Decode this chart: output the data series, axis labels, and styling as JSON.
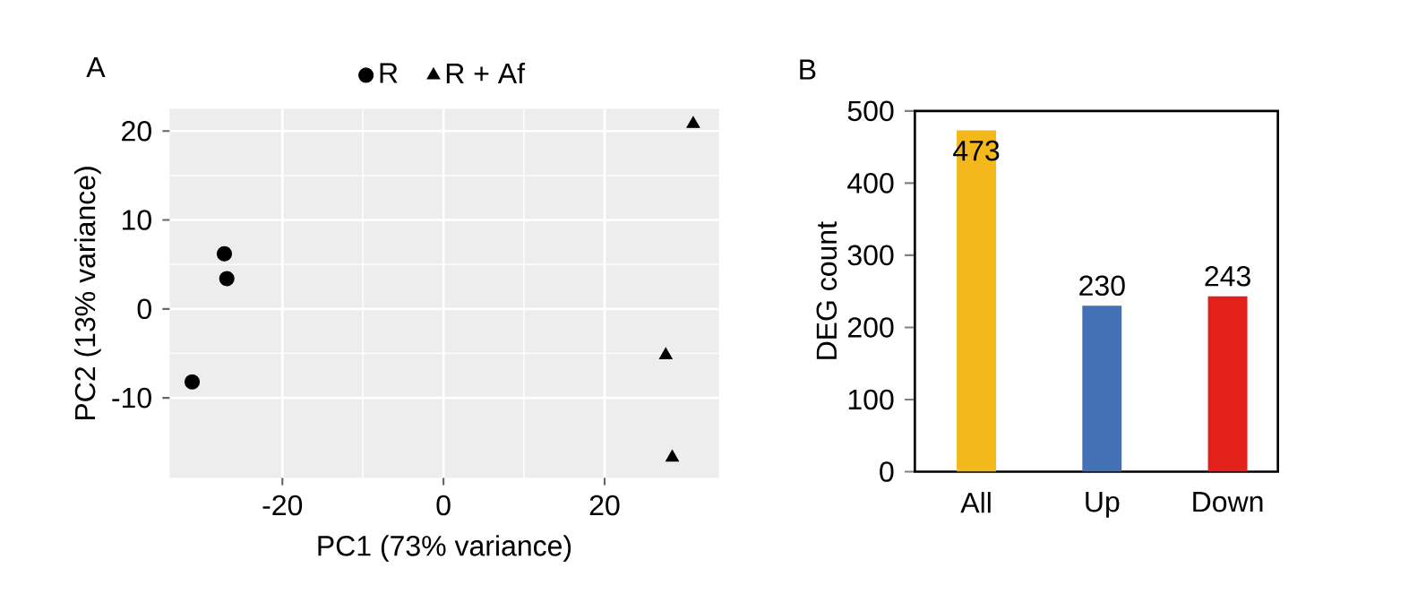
{
  "chart_data": [
    {
      "type": "scatter",
      "title": "A",
      "xlabel": "PC1 (73% variance)",
      "ylabel": "PC2 (13% variance)",
      "xlim": [
        -34,
        34.2
      ],
      "ylim": [
        -19,
        22.5
      ],
      "xticks": [
        -20,
        0,
        20
      ],
      "yticks": [
        -10,
        0,
        10,
        20
      ],
      "grid": true,
      "legend": "top",
      "series": [
        {
          "name": "R",
          "color": "#000000",
          "marker": "circle",
          "x": [
            -31.2,
            -27.2,
            -26.9
          ],
          "values": [
            -8.2,
            6.2,
            3.4
          ]
        },
        {
          "name": "R + Af",
          "color": "#000000",
          "marker": "triangle",
          "x": [
            31.0,
            27.6,
            28.4
          ],
          "values": [
            20.8,
            -5.2,
            -16.7
          ]
        }
      ]
    },
    {
      "type": "bar",
      "title": "B",
      "ylabel": "DEG count",
      "categories": [
        "All",
        "Up",
        "Down"
      ],
      "values": [
        473,
        230,
        243
      ],
      "colors": [
        "#f2b81c",
        "#4470b5",
        "#e2211c"
      ],
      "ylim": [
        0,
        500
      ],
      "yticks": [
        0,
        100,
        200,
        300,
        400,
        500
      ],
      "data_labels": true
    }
  ]
}
